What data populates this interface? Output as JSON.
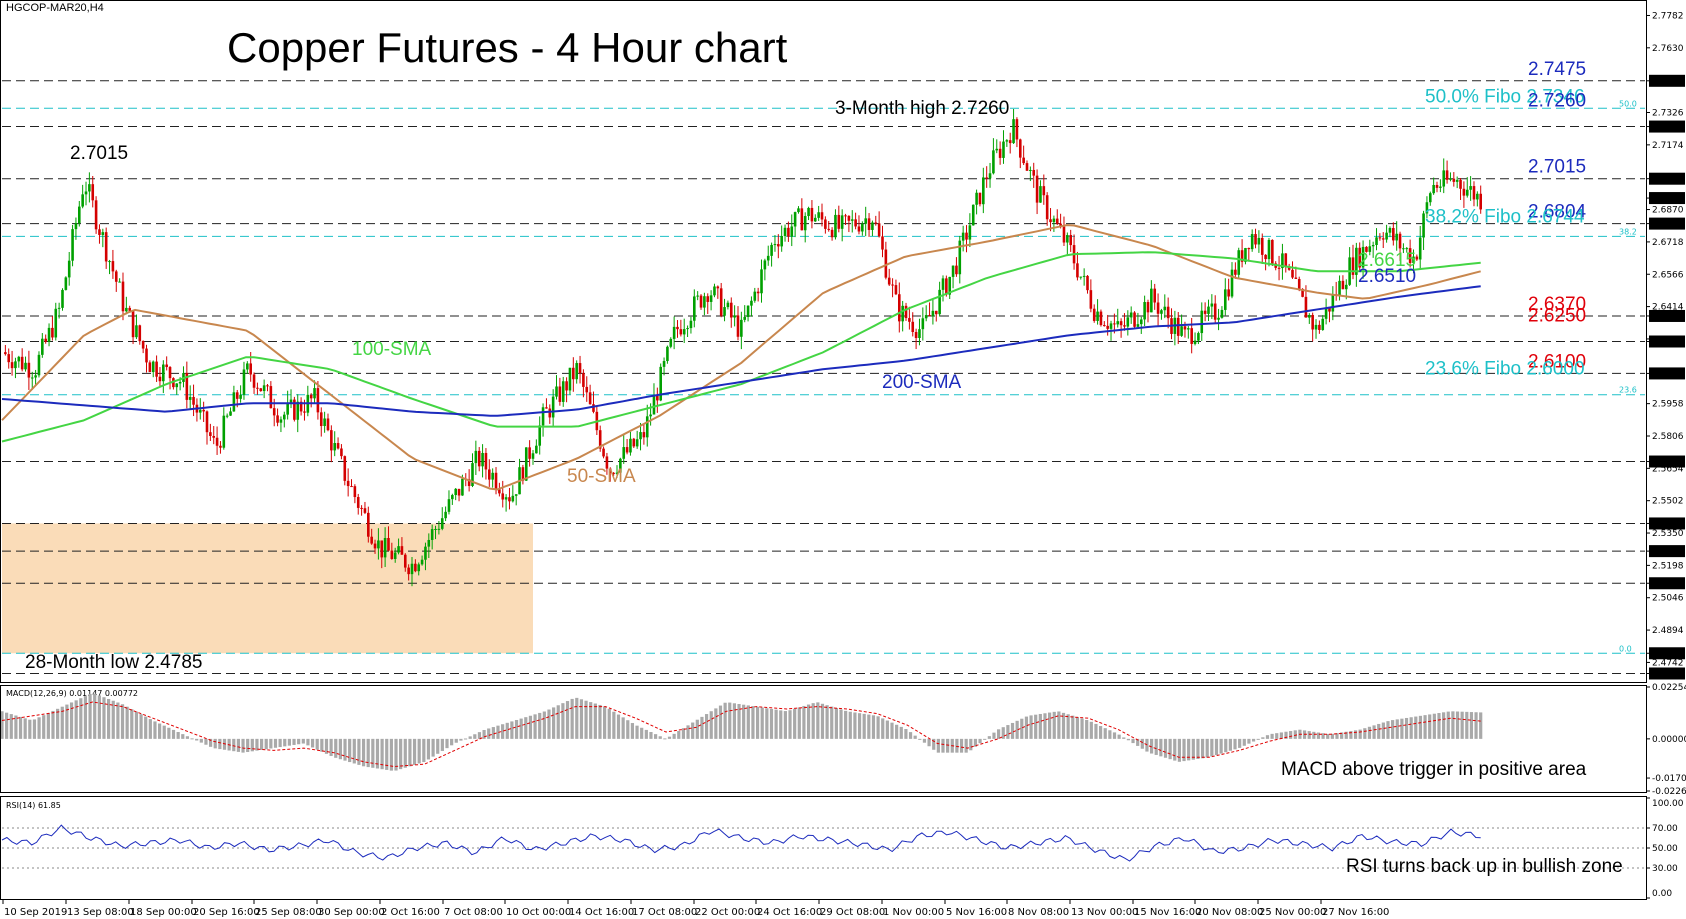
{
  "symbol_label": "HGCOP-MAR20,H4",
  "title": "Copper Futures - 4 Hour chart",
  "colors": {
    "bull": "#00a000",
    "bear": "#d40000",
    "sma50": "#c8874e",
    "sma100": "#44d544",
    "sma200": "#1c2bbd",
    "fibo": "#1ec0c8",
    "resist_text": "#1c2bbd",
    "support_text": "#e0000a",
    "zone": "#fadcb8"
  },
  "right_labels": [
    {
      "text": "2.7475",
      "color": "#1c2bbd"
    },
    {
      "text": "50.0% Fibo 2.7346",
      "color": "#1ec0c8"
    },
    {
      "text": "2.7260",
      "color": "#1c2bbd"
    },
    {
      "text": "2.7015",
      "color": "#1c2bbd"
    },
    {
      "text": "2.6804",
      "color": "#1c2bbd"
    },
    {
      "text": "38.2% Fibo 2.6744",
      "color": "#1ec0c8"
    },
    {
      "text": "2.6615",
      "color": "#44d544"
    },
    {
      "text": "2.6510",
      "color": "#1c2bbd"
    },
    {
      "text": "2.6370",
      "color": "#e0000a"
    },
    {
      "text": "2.6250",
      "color": "#e0000a"
    },
    {
      "text": "2.6100",
      "color": "#e0000a"
    },
    {
      "text": "23.6% Fibo 2.6000",
      "color": "#1ec0c8"
    }
  ],
  "annotations": {
    "high_left": "2.7015",
    "three_month_high": "3-Month high 2.7260",
    "low_28": "28-Month low 2.4785",
    "sma100": "100-SMA",
    "sma50": "50-SMA",
    "sma200": "200-SMA",
    "macd_note": "MACD above trigger in positive area",
    "rsi_note": "RSI turns back up in bullish zone",
    "fibo_50": "50.0",
    "fibo_382": "38.2",
    "fibo_236": "23.6",
    "fibo_0": "0.0"
  },
  "macd_label": "MACD(12,26,9) 0.01147 0.00772",
  "rsi_label": "RSI(14) 61.85",
  "dates": [
    "10 Sep 2019",
    "13 Sep 08:00",
    "18 Sep 00:00",
    "20 Sep 16:00",
    "25 Sep 08:00",
    "30 Sep 00:00",
    "2 Oct 16:00",
    "7 Oct 08:00",
    "10 Oct 00:00",
    "14 Oct 16:00",
    "17 Oct 08:00",
    "22 Oct 00:00",
    "24 Oct 16:00",
    "29 Oct 08:00",
    "1 Nov 00:00",
    "5 Nov 16:00",
    "8 Nov 08:00",
    "13 Nov 00:00",
    "15 Nov 16:00",
    "20 Nov 08:00",
    "25 Nov 00:00",
    "27 Nov 16:00"
  ],
  "price_axis": [
    "2.7782",
    "2.7630",
    "2.7475",
    "2.7326",
    "2.7260",
    "2.7174",
    "2.7015",
    "2.6924",
    "2.6870",
    "2.6804",
    "2.6718",
    "2.6566",
    "2.6414",
    "2.6370",
    "2.6262",
    "2.6250",
    "2.6100",
    "2.5958",
    "2.5806",
    "2.5686",
    "2.5654",
    "2.5502",
    "2.5395",
    "2.5350",
    "2.5265",
    "2.5198",
    "2.5114",
    "2.5046",
    "2.4894",
    "2.4785",
    "2.4742",
    "2.4690"
  ],
  "price_axis_highlight": [
    "2.7475",
    "2.7260",
    "2.7015",
    "2.6924",
    "2.6804",
    "2.6370",
    "2.6250",
    "2.6100",
    "2.5686",
    "2.5395",
    "2.5265",
    "2.5114",
    "2.4785",
    "2.4690"
  ],
  "macd_axis": [
    "0.02254",
    "0.00000",
    "-0.01703",
    "-0.02266"
  ],
  "rsi_axis": [
    "100.00",
    "70.00",
    "50.00",
    "30.00",
    "0.00"
  ],
  "chart_data": [
    {
      "type": "candlestick",
      "title": "Copper Futures - 4 Hour chart",
      "x_range": [
        "10 Sep 2019",
        "27 Nov 16:00"
      ],
      "ylim": [
        2.465,
        2.785
      ],
      "horizontal_levels": [
        2.7475,
        2.726,
        2.7015,
        2.6804,
        2.637,
        2.625,
        2.61,
        2.5686,
        2.5395,
        2.5265,
        2.5114,
        2.469
      ],
      "fibo_levels": [
        {
          "pct": "50.0",
          "value": 2.7346
        },
        {
          "pct": "38.2",
          "value": 2.6744
        },
        {
          "pct": "23.6",
          "value": 2.6
        },
        {
          "pct": "0.0",
          "value": 2.4785
        }
      ],
      "last_close": 2.6924,
      "close_path": [
        {
          "t": 0,
          "v": 2.62
        },
        {
          "t": 0.02,
          "v": 2.612
        },
        {
          "t": 0.035,
          "v": 2.64
        },
        {
          "t": 0.05,
          "v": 2.701
        },
        {
          "t": 0.062,
          "v": 2.672
        },
        {
          "t": 0.075,
          "v": 2.64
        },
        {
          "t": 0.09,
          "v": 2.615
        },
        {
          "t": 0.11,
          "v": 2.606
        },
        {
          "t": 0.13,
          "v": 2.575
        },
        {
          "t": 0.15,
          "v": 2.612
        },
        {
          "t": 0.17,
          "v": 2.59
        },
        {
          "t": 0.19,
          "v": 2.598
        },
        {
          "t": 0.21,
          "v": 2.56
        },
        {
          "t": 0.23,
          "v": 2.528
        },
        {
          "t": 0.25,
          "v": 2.52
        },
        {
          "t": 0.27,
          "v": 2.545
        },
        {
          "t": 0.29,
          "v": 2.57
        },
        {
          "t": 0.31,
          "v": 2.552
        },
        {
          "t": 0.33,
          "v": 2.59
        },
        {
          "t": 0.35,
          "v": 2.612
        },
        {
          "t": 0.37,
          "v": 2.565
        },
        {
          "t": 0.39,
          "v": 2.58
        },
        {
          "t": 0.41,
          "v": 2.63
        },
        {
          "t": 0.43,
          "v": 2.65
        },
        {
          "t": 0.45,
          "v": 2.63
        },
        {
          "t": 0.47,
          "v": 2.673
        },
        {
          "t": 0.49,
          "v": 2.685
        },
        {
          "t": 0.51,
          "v": 2.678
        },
        {
          "t": 0.53,
          "v": 2.684
        },
        {
          "t": 0.545,
          "v": 2.64
        },
        {
          "t": 0.56,
          "v": 2.63
        },
        {
          "t": 0.58,
          "v": 2.66
        },
        {
          "t": 0.6,
          "v": 2.705
        },
        {
          "t": 0.615,
          "v": 2.726
        },
        {
          "t": 0.63,
          "v": 2.695
        },
        {
          "t": 0.65,
          "v": 2.668
        },
        {
          "t": 0.665,
          "v": 2.64
        },
        {
          "t": 0.68,
          "v": 2.63
        },
        {
          "t": 0.7,
          "v": 2.645
        },
        {
          "t": 0.72,
          "v": 2.627
        },
        {
          "t": 0.74,
          "v": 2.64
        },
        {
          "t": 0.76,
          "v": 2.676
        },
        {
          "t": 0.78,
          "v": 2.66
        },
        {
          "t": 0.8,
          "v": 2.63
        },
        {
          "t": 0.82,
          "v": 2.66
        },
        {
          "t": 0.84,
          "v": 2.678
        },
        {
          "t": 0.86,
          "v": 2.664
        },
        {
          "t": 0.87,
          "v": 2.698
        },
        {
          "t": 0.885,
          "v": 2.701
        },
        {
          "t": 0.9,
          "v": 2.692
        }
      ],
      "series": [
        {
          "name": "50-SMA",
          "points": [
            {
              "t": 0,
              "v": 2.588
            },
            {
              "t": 0.05,
              "v": 2.628
            },
            {
              "t": 0.08,
              "v": 2.64
            },
            {
              "t": 0.15,
              "v": 2.63
            },
            {
              "t": 0.2,
              "v": 2.6
            },
            {
              "t": 0.25,
              "v": 2.57
            },
            {
              "t": 0.3,
              "v": 2.555
            },
            {
              "t": 0.35,
              "v": 2.57
            },
            {
              "t": 0.4,
              "v": 2.59
            },
            {
              "t": 0.45,
              "v": 2.615
            },
            {
              "t": 0.5,
              "v": 2.648
            },
            {
              "t": 0.55,
              "v": 2.665
            },
            {
              "t": 0.6,
              "v": 2.672
            },
            {
              "t": 0.65,
              "v": 2.68
            },
            {
              "t": 0.7,
              "v": 2.67
            },
            {
              "t": 0.75,
              "v": 2.655
            },
            {
              "t": 0.8,
              "v": 2.648
            },
            {
              "t": 0.83,
              "v": 2.645
            },
            {
              "t": 0.87,
              "v": 2.652
            },
            {
              "t": 0.9,
              "v": 2.658
            }
          ]
        },
        {
          "name": "100-SMA",
          "points": [
            {
              "t": 0,
              "v": 2.578
            },
            {
              "t": 0.05,
              "v": 2.588
            },
            {
              "t": 0.1,
              "v": 2.605
            },
            {
              "t": 0.15,
              "v": 2.618
            },
            {
              "t": 0.2,
              "v": 2.612
            },
            {
              "t": 0.25,
              "v": 2.598
            },
            {
              "t": 0.3,
              "v": 2.585
            },
            {
              "t": 0.35,
              "v": 2.585
            },
            {
              "t": 0.4,
              "v": 2.595
            },
            {
              "t": 0.45,
              "v": 2.605
            },
            {
              "t": 0.5,
              "v": 2.62
            },
            {
              "t": 0.55,
              "v": 2.64
            },
            {
              "t": 0.6,
              "v": 2.655
            },
            {
              "t": 0.65,
              "v": 2.666
            },
            {
              "t": 0.7,
              "v": 2.667
            },
            {
              "t": 0.75,
              "v": 2.664
            },
            {
              "t": 0.8,
              "v": 2.658
            },
            {
              "t": 0.85,
              "v": 2.658
            },
            {
              "t": 0.9,
              "v": 2.662
            }
          ]
        },
        {
          "name": "200-SMA",
          "points": [
            {
              "t": 0,
              "v": 2.598
            },
            {
              "t": 0.05,
              "v": 2.595
            },
            {
              "t": 0.1,
              "v": 2.592
            },
            {
              "t": 0.15,
              "v": 2.596
            },
            {
              "t": 0.2,
              "v": 2.596
            },
            {
              "t": 0.25,
              "v": 2.592
            },
            {
              "t": 0.3,
              "v": 2.59
            },
            {
              "t": 0.35,
              "v": 2.593
            },
            {
              "t": 0.4,
              "v": 2.6
            },
            {
              "t": 0.45,
              "v": 2.606
            },
            {
              "t": 0.5,
              "v": 2.612
            },
            {
              "t": 0.55,
              "v": 2.616
            },
            {
              "t": 0.6,
              "v": 2.622
            },
            {
              "t": 0.65,
              "v": 2.628
            },
            {
              "t": 0.7,
              "v": 2.632
            },
            {
              "t": 0.75,
              "v": 2.634
            },
            {
              "t": 0.8,
              "v": 2.64
            },
            {
              "t": 0.85,
              "v": 2.646
            },
            {
              "t": 0.9,
              "v": 2.651
            }
          ]
        }
      ]
    },
    {
      "type": "bar",
      "title": "MACD(12,26,9) 0.01147 0.00772",
      "ylim": [
        -0.02266,
        0.02254
      ],
      "macd_values": [
        0.012,
        0.008,
        0.014,
        0.02,
        0.015,
        0.008,
        0.002,
        -0.004,
        -0.006,
        -0.004,
        -0.002,
        -0.008,
        -0.012,
        -0.014,
        -0.01,
        -0.002,
        0.004,
        0.008,
        0.012,
        0.018,
        0.014,
        0.006,
        0.0,
        0.008,
        0.016,
        0.014,
        0.012,
        0.016,
        0.012,
        0.01,
        0.004,
        -0.006,
        -0.006,
        0.004,
        0.01,
        0.012,
        0.008,
        0.002,
        -0.006,
        -0.01,
        -0.008,
        -0.004,
        0.002,
        0.004,
        0.002,
        0.004,
        0.008,
        0.01,
        0.012,
        0.0115
      ],
      "signal_values": [
        0.008,
        0.01,
        0.012,
        0.016,
        0.014,
        0.009,
        0.004,
        -0.001,
        -0.004,
        -0.005,
        -0.004,
        -0.006,
        -0.01,
        -0.012,
        -0.011,
        -0.005,
        0.001,
        0.005,
        0.009,
        0.014,
        0.014,
        0.009,
        0.003,
        0.005,
        0.012,
        0.014,
        0.013,
        0.014,
        0.013,
        0.011,
        0.006,
        -0.002,
        -0.004,
        0.0,
        0.006,
        0.01,
        0.009,
        0.004,
        -0.003,
        -0.008,
        -0.008,
        -0.005,
        -0.001,
        0.002,
        0.002,
        0.003,
        0.005,
        0.007,
        0.009,
        0.0077
      ]
    },
    {
      "type": "line",
      "title": "RSI(14) 61.85",
      "ylim": [
        0,
        100
      ],
      "levels": [
        70,
        50,
        30
      ],
      "values": [
        58,
        55,
        70,
        60,
        52,
        55,
        58,
        50,
        55,
        48,
        52,
        58,
        45,
        40,
        50,
        55,
        45,
        60,
        48,
        55,
        62,
        58,
        48,
        52,
        68,
        60,
        55,
        62,
        58,
        54,
        48,
        62,
        66,
        58,
        50,
        55,
        60,
        48,
        38,
        52,
        60,
        46,
        50,
        58,
        54,
        50,
        62,
        56,
        54,
        66,
        62
      ]
    }
  ]
}
